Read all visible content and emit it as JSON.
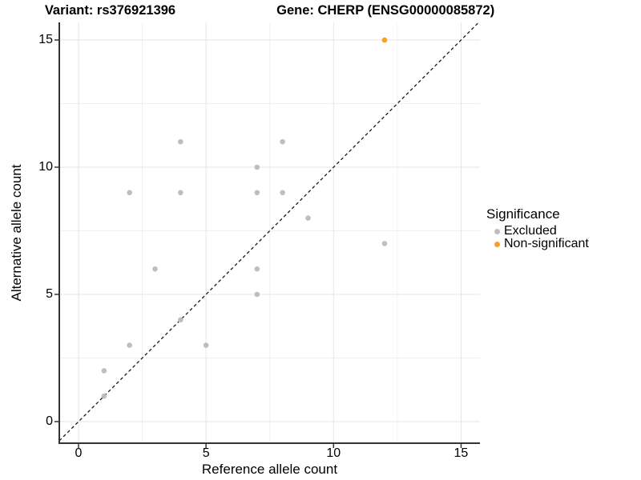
{
  "titles": {
    "variant": "Variant: rs376921396",
    "gene": "Gene: CHERP (ENSG00000085872)"
  },
  "axes": {
    "x": {
      "label": "Reference allele count",
      "ticks": [
        0,
        5,
        10,
        15
      ]
    },
    "y": {
      "label": "Alternative allele count",
      "ticks": [
        0,
        5,
        10,
        15
      ]
    }
  },
  "legend": {
    "title": "Significance",
    "items": [
      {
        "label": "Excluded",
        "color": "#BEBEBE"
      },
      {
        "label": "Non-significant",
        "color": "#FAA01E"
      }
    ]
  },
  "colors": {
    "excluded_point": "#BEBEBE",
    "non_significant_point": "#FAA01E",
    "major_grid": "#E4E4E4",
    "minor_grid": "#F0F0F0",
    "axis_line": "#333333",
    "identity_line": "#1A1A1A"
  },
  "chart_data": {
    "type": "scatter",
    "title": "Variant: rs376921396    Gene: CHERP (ENSG00000085872)",
    "xlabel": "Reference allele count",
    "ylabel": "Alternative allele count",
    "xlim": [
      -0.75,
      15.75
    ],
    "ylim": [
      -0.85,
      15.7
    ],
    "x_ticks": [
      0,
      5,
      10,
      15
    ],
    "y_ticks": [
      0,
      5,
      10,
      15
    ],
    "grid": {
      "major": [
        0,
        5,
        10,
        15
      ],
      "minor": [
        2.5,
        7.5,
        12.5
      ]
    },
    "legend_position": "right",
    "reference_line": {
      "type": "identity y=x",
      "style": "dashed",
      "color": "#1A1A1A"
    },
    "series": [
      {
        "name": "Excluded",
        "color": "#BEBEBE",
        "points": [
          [
            1,
            1
          ],
          [
            1,
            2
          ],
          [
            2,
            3
          ],
          [
            2,
            9
          ],
          [
            3,
            6
          ],
          [
            4,
            4
          ],
          [
            4,
            9
          ],
          [
            4,
            11
          ],
          [
            5,
            3
          ],
          [
            7,
            5
          ],
          [
            7,
            6
          ],
          [
            7,
            9
          ],
          [
            7,
            10
          ],
          [
            8,
            9
          ],
          [
            8,
            11
          ],
          [
            9,
            8
          ],
          [
            12,
            7
          ]
        ]
      },
      {
        "name": "Non-significant",
        "color": "#FAA01E",
        "points": [
          [
            12,
            15
          ]
        ]
      }
    ]
  }
}
